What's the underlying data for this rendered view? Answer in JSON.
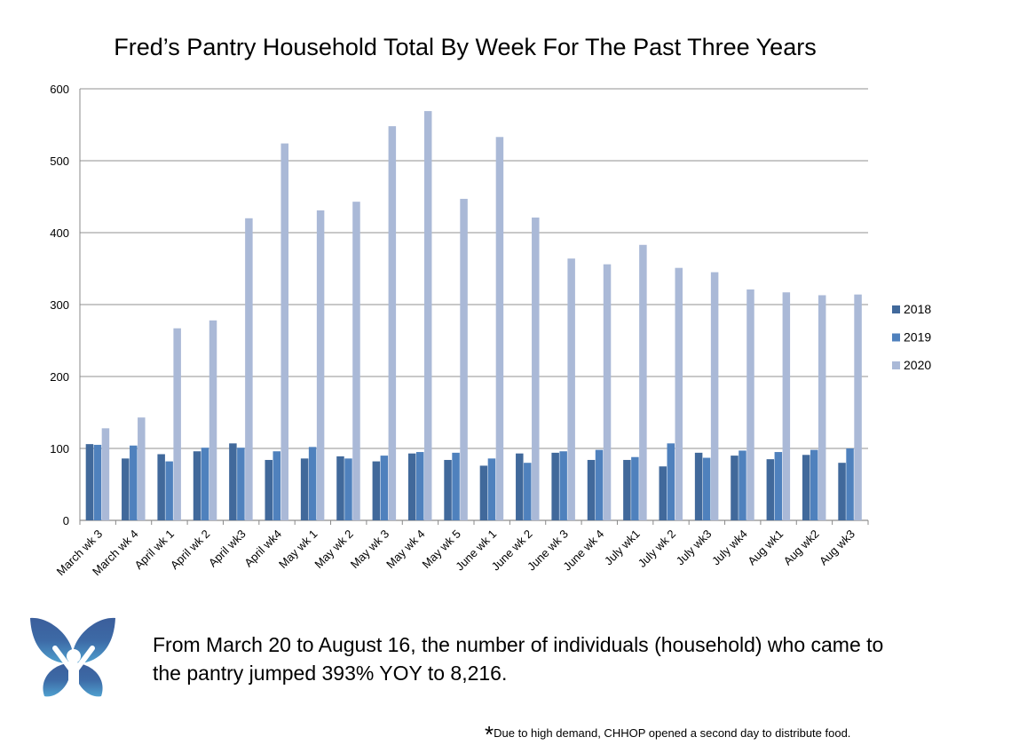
{
  "chart_data": {
    "type": "bar",
    "title": "Fred’s Pantry Household Total By Week For The Past Three Years",
    "xlabel": "",
    "ylabel": "",
    "ylim": [
      0,
      600
    ],
    "yticks": [
      0,
      100,
      200,
      300,
      400,
      500,
      600
    ],
    "grid": true,
    "legend_position": "right",
    "categories": [
      "March wk 3",
      "March wk 4",
      "April wk 1",
      "April wk 2",
      "April wk3",
      "April wk4",
      "May wk 1",
      "May wk 2",
      "May wk 3",
      "May wk 4",
      "May wk 5",
      "June wk 1",
      "June wk 2",
      "June wk 3",
      "June wk 4",
      "July wk1",
      "July wk 2",
      "July wk3",
      "July wk4",
      "Aug wk1",
      "Aug wk2",
      "Aug wk3"
    ],
    "series": [
      {
        "name": "2018",
        "color": "#41699b",
        "values": [
          106,
          86,
          92,
          96,
          107,
          84,
          86,
          89,
          82,
          93,
          84,
          76,
          93,
          94,
          84,
          84,
          75,
          94,
          90,
          85,
          91,
          80
        ]
      },
      {
        "name": "2019",
        "color": "#4f81bd",
        "values": [
          105,
          104,
          82,
          101,
          101,
          96,
          102,
          86,
          90,
          95,
          94,
          86,
          80,
          96,
          98,
          88,
          107,
          87,
          97,
          95,
          98,
          100
        ]
      },
      {
        "name": "2020",
        "color": "#aab9d7",
        "values": [
          128,
          143,
          267,
          278,
          420,
          524,
          431,
          443,
          548,
          569,
          447,
          533,
          421,
          364,
          356,
          383,
          351,
          345,
          321,
          317,
          313,
          314
        ]
      }
    ]
  },
  "caption": "From March 20 to August 16, the number of individuals (household) who came to the pantry jumped 393% YOY to 8,216.",
  "footnote": {
    "star": "*",
    "text": "Due to high demand, CHHOP opened a second day to distribute food."
  },
  "logo": {
    "icon": "butterfly-person-logo"
  }
}
